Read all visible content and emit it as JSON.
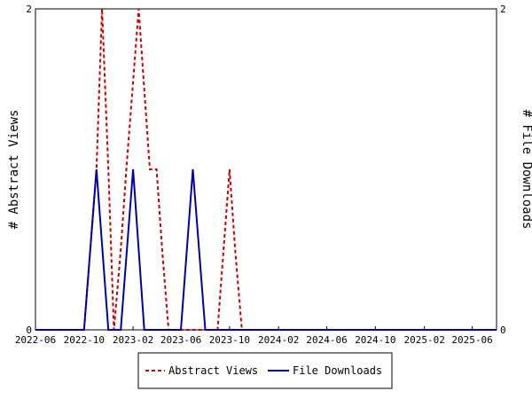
{
  "chart_data": {
    "type": "line",
    "ylabel_left": "# Abstract Views",
    "ylabel_right": "# File Downloads",
    "x_ticks": [
      "2022-06",
      "2022-10",
      "2023-02",
      "2023-06",
      "2023-10",
      "2024-02",
      "2024-06",
      "2024-10",
      "2025-02",
      "2025-06"
    ],
    "x_range": [
      "2022-06",
      "2025-08"
    ],
    "y_left_range": [
      0,
      2
    ],
    "y_right_range": [
      0,
      2
    ],
    "y_left_ticks": [
      "0",
      "2"
    ],
    "y_right_ticks": [
      "0",
      "2"
    ],
    "grid": false,
    "legend_position": "bottom-center",
    "series": [
      {
        "name": "Abstract Views",
        "color": "#cc0000",
        "style": "dashed",
        "points": [
          [
            "2022-06-01",
            0
          ],
          [
            "2022-10-01",
            0
          ],
          [
            "2022-11-01",
            1
          ],
          [
            "2022-11-15",
            2
          ],
          [
            "2022-12-01",
            1
          ],
          [
            "2022-12-15",
            0
          ],
          [
            "2023-01-01",
            0.5
          ],
          [
            "2023-01-15",
            1
          ],
          [
            "2023-02-15",
            2
          ],
          [
            "2023-03-15",
            1
          ],
          [
            "2023-04-01",
            1
          ],
          [
            "2023-04-15",
            0.5
          ],
          [
            "2023-05-01",
            0
          ],
          [
            "2023-09-01",
            0
          ],
          [
            "2023-10-01",
            1
          ],
          [
            "2023-10-15",
            0.5
          ],
          [
            "2023-11-01",
            0
          ],
          [
            "2025-08-01",
            0
          ]
        ]
      },
      {
        "name": "File Downloads",
        "color": "#0000aa",
        "style": "solid",
        "points": [
          [
            "2022-06-01",
            0
          ],
          [
            "2022-10-01",
            0
          ],
          [
            "2022-11-01",
            1
          ],
          [
            "2022-12-01",
            0
          ],
          [
            "2023-01-01",
            0
          ],
          [
            "2023-02-01",
            1
          ],
          [
            "2023-03-01",
            0
          ],
          [
            "2023-06-01",
            0
          ],
          [
            "2023-07-01",
            1
          ],
          [
            "2023-08-01",
            0
          ],
          [
            "2025-08-01",
            0
          ]
        ]
      }
    ]
  }
}
